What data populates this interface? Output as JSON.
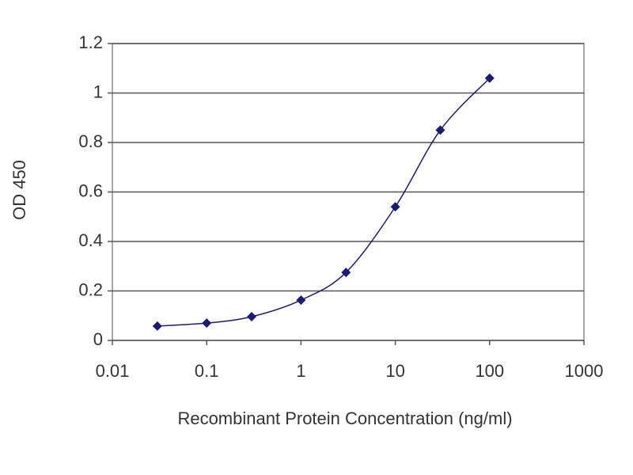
{
  "chart_data": {
    "type": "line",
    "x_label": "Recombinant Protein Concentration (ng/ml)",
    "y_label": "OD 450",
    "x_scale": "log",
    "grid": true,
    "series": [
      {
        "color": "#1a1a7a",
        "x": [
          0.03,
          0.1,
          0.3,
          1,
          3,
          10,
          30,
          100
        ],
        "values": [
          0.058,
          0.07,
          0.096,
          0.163,
          0.275,
          0.54,
          0.85,
          1.06
        ]
      }
    ],
    "xlim": [
      0.01,
      1000
    ],
    "xticks": [
      0.01,
      0.1,
      1,
      10,
      100,
      1000
    ],
    "ylim": [
      0,
      1.2
    ],
    "yticks": [
      0,
      0.2,
      0.4,
      0.6,
      0.8,
      1,
      1.2
    ]
  }
}
